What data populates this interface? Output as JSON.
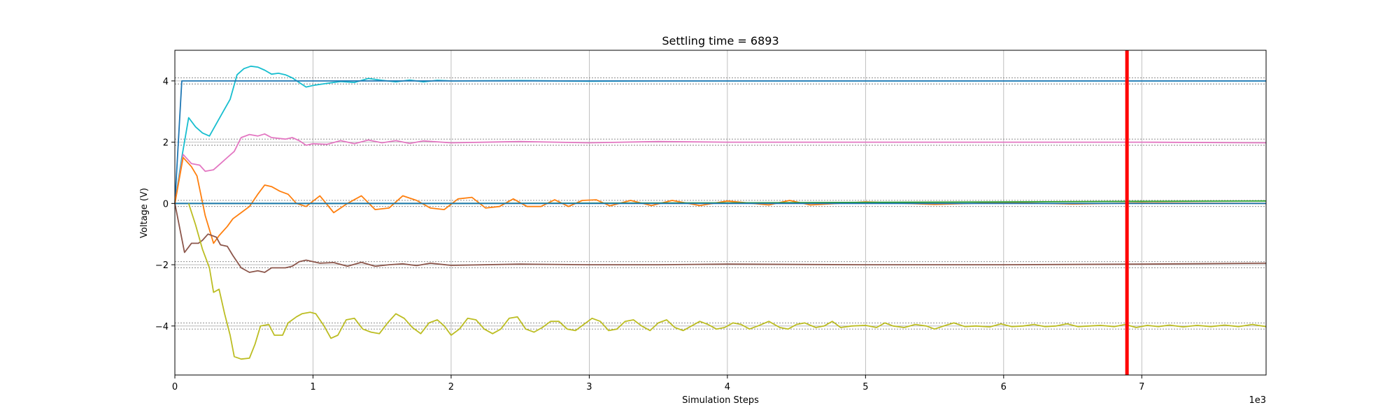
{
  "chart_data": {
    "type": "line",
    "title": "Settling time = 6893",
    "xlabel": "Simulation Steps",
    "ylabel": "Voltage (V)",
    "x_multiplier_label": "1e3",
    "xlim": [
      0,
      7900
    ],
    "ylim": [
      -5.6,
      5.0
    ],
    "x_ticks": [
      0,
      1000,
      2000,
      3000,
      4000,
      5000,
      6000,
      7000
    ],
    "x_tick_labels": [
      "0",
      "1",
      "2",
      "3",
      "4",
      "5",
      "6",
      "7"
    ],
    "y_ticks": [
      4,
      2,
      0,
      -2,
      -4
    ],
    "y_tick_labels": [
      "4",
      "2",
      "0",
      "−2",
      "−4"
    ],
    "grid": true,
    "settling_time": 6893,
    "settling_line_color": "#ff0000",
    "tolerance_bands": [
      {
        "target": 4,
        "width": 0.1
      },
      {
        "target": 2,
        "width": 0.1
      },
      {
        "target": 0,
        "width": 0.1
      },
      {
        "target": -2,
        "width": 0.1
      },
      {
        "target": -4,
        "width": 0.1
      }
    ],
    "series": [
      {
        "color": "#17becf",
        "points": [
          [
            0,
            0
          ],
          [
            50,
            1.5
          ],
          [
            100,
            2.8
          ],
          [
            150,
            2.5
          ],
          [
            200,
            2.3
          ],
          [
            250,
            2.2
          ],
          [
            300,
            2.6
          ],
          [
            350,
            3.0
          ],
          [
            400,
            3.4
          ],
          [
            450,
            4.2
          ],
          [
            500,
            4.4
          ],
          [
            550,
            4.48
          ],
          [
            600,
            4.45
          ],
          [
            650,
            4.35
          ],
          [
            700,
            4.22
          ],
          [
            750,
            4.25
          ],
          [
            800,
            4.2
          ],
          [
            850,
            4.1
          ],
          [
            900,
            3.95
          ],
          [
            950,
            3.8
          ],
          [
            1000,
            3.85
          ],
          [
            1100,
            3.92
          ],
          [
            1200,
            3.98
          ],
          [
            1300,
            3.95
          ],
          [
            1400,
            4.08
          ],
          [
            1500,
            4.02
          ],
          [
            1600,
            3.97
          ],
          [
            1700,
            4.03
          ],
          [
            1800,
            3.97
          ],
          [
            1900,
            4.02
          ],
          [
            2000,
            4.0
          ],
          [
            2500,
            4.01
          ],
          [
            3000,
            3.99
          ],
          [
            3500,
            4.0
          ],
          [
            4000,
            4.0
          ],
          [
            5000,
            4.0
          ],
          [
            6000,
            4.0
          ],
          [
            7000,
            4.0
          ],
          [
            7900,
            4.0
          ]
        ]
      },
      {
        "color": "#1f77b4",
        "points": [
          [
            0,
            0
          ],
          [
            50,
            4.0
          ],
          [
            100,
            4.0
          ],
          [
            2000,
            4.0
          ],
          [
            4000,
            4.0
          ],
          [
            6000,
            4.0
          ],
          [
            7900,
            4.0
          ]
        ]
      },
      {
        "color": "#e377c2",
        "points": [
          [
            0,
            0
          ],
          [
            60,
            1.6
          ],
          [
            120,
            1.3
          ],
          [
            180,
            1.25
          ],
          [
            220,
            1.05
          ],
          [
            280,
            1.1
          ],
          [
            330,
            1.3
          ],
          [
            380,
            1.5
          ],
          [
            430,
            1.7
          ],
          [
            480,
            2.15
          ],
          [
            540,
            2.25
          ],
          [
            600,
            2.2
          ],
          [
            650,
            2.27
          ],
          [
            700,
            2.15
          ],
          [
            800,
            2.1
          ],
          [
            850,
            2.15
          ],
          [
            900,
            2.05
          ],
          [
            950,
            1.9
          ],
          [
            1000,
            1.95
          ],
          [
            1100,
            1.93
          ],
          [
            1200,
            2.05
          ],
          [
            1300,
            1.95
          ],
          [
            1400,
            2.07
          ],
          [
            1500,
            1.98
          ],
          [
            1600,
            2.05
          ],
          [
            1700,
            1.96
          ],
          [
            1800,
            2.04
          ],
          [
            2000,
            1.98
          ],
          [
            2500,
            2.02
          ],
          [
            3000,
            1.98
          ],
          [
            3500,
            2.02
          ],
          [
            4000,
            2.0
          ],
          [
            5000,
            2.0
          ],
          [
            6000,
            2.0
          ],
          [
            7000,
            2.0
          ],
          [
            7900,
            1.98
          ]
        ]
      },
      {
        "color": "#ff7f0e",
        "points": [
          [
            0,
            0
          ],
          [
            60,
            1.5
          ],
          [
            120,
            1.2
          ],
          [
            160,
            0.9
          ],
          [
            220,
            -0.4
          ],
          [
            280,
            -1.3
          ],
          [
            320,
            -1.05
          ],
          [
            380,
            -0.75
          ],
          [
            420,
            -0.5
          ],
          [
            480,
            -0.3
          ],
          [
            540,
            -0.1
          ],
          [
            600,
            0.3
          ],
          [
            650,
            0.6
          ],
          [
            700,
            0.55
          ],
          [
            760,
            0.4
          ],
          [
            820,
            0.3
          ],
          [
            880,
            0.0
          ],
          [
            950,
            -0.1
          ],
          [
            1050,
            0.25
          ],
          [
            1150,
            -0.3
          ],
          [
            1250,
            0.0
          ],
          [
            1350,
            0.25
          ],
          [
            1450,
            -0.2
          ],
          [
            1550,
            -0.15
          ],
          [
            1650,
            0.25
          ],
          [
            1750,
            0.1
          ],
          [
            1850,
            -0.15
          ],
          [
            1950,
            -0.2
          ],
          [
            2050,
            0.15
          ],
          [
            2150,
            0.2
          ],
          [
            2250,
            -0.15
          ],
          [
            2350,
            -0.1
          ],
          [
            2450,
            0.15
          ],
          [
            2550,
            -0.1
          ],
          [
            2650,
            -0.1
          ],
          [
            2750,
            0.12
          ],
          [
            2850,
            -0.1
          ],
          [
            2950,
            0.1
          ],
          [
            3050,
            0.12
          ],
          [
            3150,
            -0.08
          ],
          [
            3300,
            0.1
          ],
          [
            3450,
            -0.07
          ],
          [
            3600,
            0.1
          ],
          [
            3800,
            -0.07
          ],
          [
            4000,
            0.08
          ],
          [
            4300,
            -0.05
          ],
          [
            4450,
            0.1
          ],
          [
            4600,
            -0.05
          ],
          [
            5000,
            0.05
          ],
          [
            5500,
            -0.03
          ],
          [
            6000,
            0.03
          ],
          [
            6500,
            -0.02
          ],
          [
            7000,
            0.02
          ],
          [
            7900,
            0.0
          ]
        ]
      },
      {
        "color": "#2ca02c",
        "points": [
          [
            0,
            0
          ],
          [
            2000,
            0.0
          ],
          [
            4000,
            0.02
          ],
          [
            6000,
            0.05
          ],
          [
            7000,
            0.07
          ],
          [
            7900,
            0.08
          ]
        ]
      },
      {
        "color": "#1f77b4",
        "points": [
          [
            0,
            0
          ],
          [
            2000,
            0.0
          ],
          [
            4000,
            0.0
          ],
          [
            6000,
            0.0
          ],
          [
            7900,
            0.0
          ]
        ]
      },
      {
        "color": "#8c564b",
        "points": [
          [
            0,
            0
          ],
          [
            70,
            -1.6
          ],
          [
            120,
            -1.3
          ],
          [
            170,
            -1.3
          ],
          [
            200,
            -1.2
          ],
          [
            240,
            -1.0
          ],
          [
            300,
            -1.1
          ],
          [
            330,
            -1.35
          ],
          [
            380,
            -1.4
          ],
          [
            420,
            -1.7
          ],
          [
            480,
            -2.1
          ],
          [
            540,
            -2.25
          ],
          [
            600,
            -2.2
          ],
          [
            650,
            -2.25
          ],
          [
            700,
            -2.1
          ],
          [
            800,
            -2.1
          ],
          [
            850,
            -2.05
          ],
          [
            900,
            -1.9
          ],
          [
            950,
            -1.85
          ],
          [
            1050,
            -1.95
          ],
          [
            1150,
            -1.93
          ],
          [
            1250,
            -2.05
          ],
          [
            1350,
            -1.92
          ],
          [
            1450,
            -2.05
          ],
          [
            1550,
            -2.0
          ],
          [
            1650,
            -1.97
          ],
          [
            1750,
            -2.03
          ],
          [
            1850,
            -1.95
          ],
          [
            2000,
            -2.02
          ],
          [
            2500,
            -1.98
          ],
          [
            3000,
            -2.0
          ],
          [
            3500,
            -2.0
          ],
          [
            4000,
            -1.98
          ],
          [
            5000,
            -2.0
          ],
          [
            6000,
            -2.0
          ],
          [
            7000,
            -1.98
          ],
          [
            7900,
            -1.95
          ]
        ]
      },
      {
        "color": "#bcbd22",
        "points": [
          [
            100,
            0
          ],
          [
            150,
            -0.7
          ],
          [
            200,
            -1.5
          ],
          [
            250,
            -2.1
          ],
          [
            280,
            -2.9
          ],
          [
            320,
            -2.8
          ],
          [
            360,
            -3.6
          ],
          [
            400,
            -4.3
          ],
          [
            430,
            -5.0
          ],
          [
            480,
            -5.08
          ],
          [
            540,
            -5.05
          ],
          [
            580,
            -4.6
          ],
          [
            620,
            -4.0
          ],
          [
            680,
            -3.95
          ],
          [
            720,
            -4.3
          ],
          [
            780,
            -4.3
          ],
          [
            820,
            -3.9
          ],
          [
            880,
            -3.7
          ],
          [
            920,
            -3.6
          ],
          [
            980,
            -3.55
          ],
          [
            1020,
            -3.6
          ],
          [
            1080,
            -4.0
          ],
          [
            1130,
            -4.4
          ],
          [
            1180,
            -4.3
          ],
          [
            1240,
            -3.8
          ],
          [
            1300,
            -3.75
          ],
          [
            1360,
            -4.1
          ],
          [
            1420,
            -4.2
          ],
          [
            1480,
            -4.25
          ],
          [
            1540,
            -3.9
          ],
          [
            1600,
            -3.6
          ],
          [
            1660,
            -3.75
          ],
          [
            1720,
            -4.05
          ],
          [
            1780,
            -4.25
          ],
          [
            1840,
            -3.9
          ],
          [
            1900,
            -3.8
          ],
          [
            1950,
            -4.0
          ],
          [
            2000,
            -4.3
          ],
          [
            2060,
            -4.1
          ],
          [
            2120,
            -3.75
          ],
          [
            2180,
            -3.8
          ],
          [
            2240,
            -4.1
          ],
          [
            2300,
            -4.25
          ],
          [
            2360,
            -4.1
          ],
          [
            2420,
            -3.75
          ],
          [
            2480,
            -3.7
          ],
          [
            2540,
            -4.1
          ],
          [
            2600,
            -4.2
          ],
          [
            2660,
            -4.05
          ],
          [
            2720,
            -3.85
          ],
          [
            2780,
            -3.85
          ],
          [
            2840,
            -4.1
          ],
          [
            2900,
            -4.15
          ],
          [
            2960,
            -3.95
          ],
          [
            3020,
            -3.75
          ],
          [
            3080,
            -3.85
          ],
          [
            3140,
            -4.15
          ],
          [
            3200,
            -4.1
          ],
          [
            3260,
            -3.85
          ],
          [
            3320,
            -3.8
          ],
          [
            3380,
            -4.0
          ],
          [
            3440,
            -4.15
          ],
          [
            3500,
            -3.9
          ],
          [
            3560,
            -3.8
          ],
          [
            3620,
            -4.05
          ],
          [
            3680,
            -4.15
          ],
          [
            3740,
            -4.0
          ],
          [
            3800,
            -3.85
          ],
          [
            3860,
            -3.95
          ],
          [
            3920,
            -4.1
          ],
          [
            3980,
            -4.05
          ],
          [
            4040,
            -3.9
          ],
          [
            4100,
            -3.95
          ],
          [
            4160,
            -4.1
          ],
          [
            4220,
            -4.0
          ],
          [
            4300,
            -3.85
          ],
          [
            4380,
            -4.05
          ],
          [
            4440,
            -4.1
          ],
          [
            4500,
            -3.95
          ],
          [
            4560,
            -3.9
          ],
          [
            4640,
            -4.05
          ],
          [
            4700,
            -4.0
          ],
          [
            4760,
            -3.85
          ],
          [
            4820,
            -4.05
          ],
          [
            4900,
            -4.0
          ],
          [
            5000,
            -3.98
          ],
          [
            5080,
            -4.05
          ],
          [
            5140,
            -3.9
          ],
          [
            5200,
            -4.0
          ],
          [
            5280,
            -4.05
          ],
          [
            5360,
            -3.95
          ],
          [
            5440,
            -4.0
          ],
          [
            5500,
            -4.1
          ],
          [
            5580,
            -3.98
          ],
          [
            5640,
            -3.9
          ],
          [
            5720,
            -4.02
          ],
          [
            5800,
            -4.0
          ],
          [
            5900,
            -4.03
          ],
          [
            5980,
            -3.93
          ],
          [
            6060,
            -4.02
          ],
          [
            6140,
            -4.0
          ],
          [
            6220,
            -3.95
          ],
          [
            6300,
            -4.02
          ],
          [
            6380,
            -4.0
          ],
          [
            6460,
            -3.93
          ],
          [
            6540,
            -4.02
          ],
          [
            6620,
            -4.0
          ],
          [
            6700,
            -3.98
          ],
          [
            6800,
            -4.02
          ],
          [
            6880,
            -3.95
          ],
          [
            6960,
            -4.05
          ],
          [
            7040,
            -3.98
          ],
          [
            7120,
            -4.02
          ],
          [
            7200,
            -3.97
          ],
          [
            7300,
            -4.03
          ],
          [
            7400,
            -3.98
          ],
          [
            7500,
            -4.02
          ],
          [
            7600,
            -3.97
          ],
          [
            7700,
            -4.02
          ],
          [
            7800,
            -3.95
          ],
          [
            7900,
            -4.02
          ]
        ]
      }
    ]
  }
}
